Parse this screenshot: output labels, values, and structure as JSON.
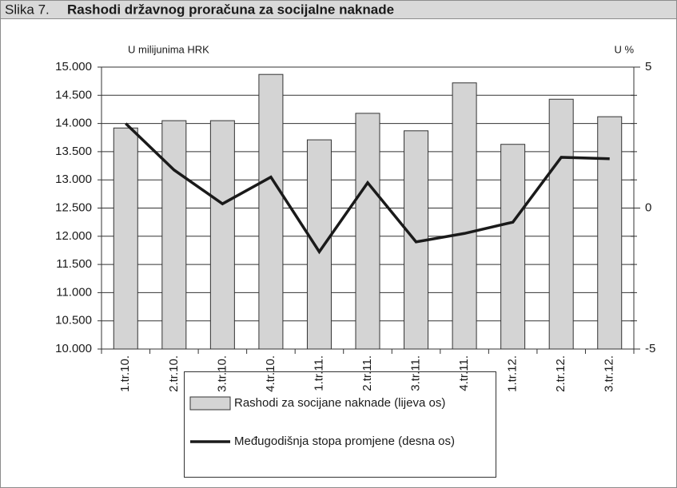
{
  "chart_data": {
    "type": "bar-line",
    "figure_label": "Slika 7.",
    "title": "Rashodi državnog proračuna za socijalne naknade",
    "y_axis_label": "U milijunima HRK",
    "y2_axis_label": "U %",
    "categories": [
      "1.tr.10.",
      "2.tr.10.",
      "3.tr.10.",
      "4.tr.10.",
      "1.tr.11.",
      "2.tr.11.",
      "3.tr.11.",
      "4.tr.11.",
      "1.tr.12.",
      "2.tr.12.",
      "3.tr.12."
    ],
    "series": [
      {
        "name": "Rashodi za socijane naknade (lijeva os)",
        "type": "bar",
        "color": "#d4d4d4",
        "values": [
          13920,
          14050,
          14050,
          14870,
          13710,
          14180,
          13870,
          14720,
          13630,
          14430,
          14120
        ]
      },
      {
        "name": "Međugodišnja stopa promjene (desna os)",
        "type": "line",
        "color": "#1a1a1a",
        "axis": "y2",
        "values": [
          3.0,
          1.35,
          0.15,
          1.1,
          -1.55,
          0.9,
          -1.2,
          -0.9,
          -0.5,
          1.8,
          1.75
        ]
      }
    ],
    "ylim": [
      10000,
      15000
    ],
    "yticks": [
      {
        "value": 10000,
        "label": "10.000"
      },
      {
        "value": 10500,
        "label": "10.500"
      },
      {
        "value": 11000,
        "label": "11.000"
      },
      {
        "value": 11500,
        "label": "11.500"
      },
      {
        "value": 12000,
        "label": "12.000"
      },
      {
        "value": 12500,
        "label": "12.500"
      },
      {
        "value": 13000,
        "label": "13.000"
      },
      {
        "value": 13500,
        "label": "13.500"
      },
      {
        "value": 14000,
        "label": "14.000"
      },
      {
        "value": 14500,
        "label": "14.500"
      },
      {
        "value": 15000,
        "label": "15.000"
      }
    ],
    "y2lim": [
      -5,
      5
    ],
    "y2ticks": [
      -5,
      0,
      5
    ],
    "grid": true
  }
}
